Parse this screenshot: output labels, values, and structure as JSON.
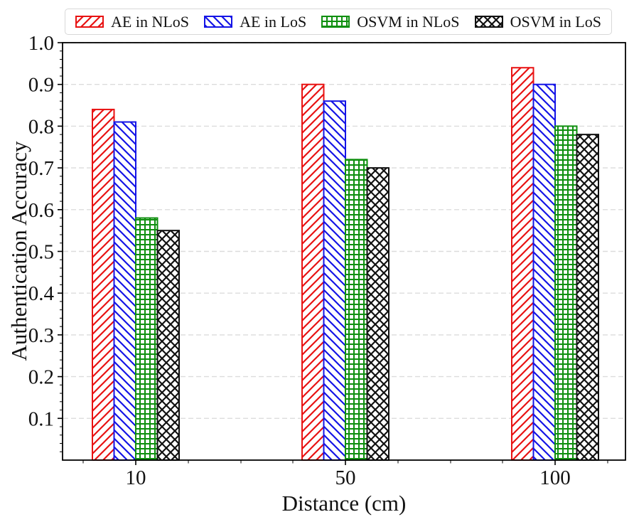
{
  "chart_data": {
    "type": "bar",
    "title": "",
    "xlabel": "Distance (cm)",
    "ylabel": "Authentication Accuracy",
    "categories": [
      "10",
      "50",
      "100"
    ],
    "series": [
      {
        "name": "AE in NLoS",
        "hatch": "/",
        "color": "#e81212",
        "values": [
          0.84,
          0.9,
          0.94
        ]
      },
      {
        "name": "AE in LoS",
        "hatch": "\\",
        "color": "#1414e6",
        "values": [
          0.81,
          0.86,
          0.9
        ]
      },
      {
        "name": "OSVM in NLoS",
        "hatch": "+",
        "color": "#0f8f0f",
        "values": [
          0.58,
          0.72,
          0.8
        ]
      },
      {
        "name": "OSVM in LoS",
        "hatch": "x",
        "color": "#111111",
        "values": [
          0.55,
          0.7,
          0.78
        ]
      }
    ],
    "ylim": [
      0,
      1.0
    ],
    "yticks": [
      0.1,
      0.2,
      0.3,
      0.4,
      0.5,
      0.6,
      0.7,
      0.8,
      0.9,
      1.0
    ],
    "grid": "horizontal-dashed",
    "legend_position": "top",
    "colors": {
      "grid": "#dcdcdc",
      "axis": "#000000",
      "legend_border": "#d8d8d8",
      "background": "#ffffff",
      "text": "#111111"
    }
  }
}
